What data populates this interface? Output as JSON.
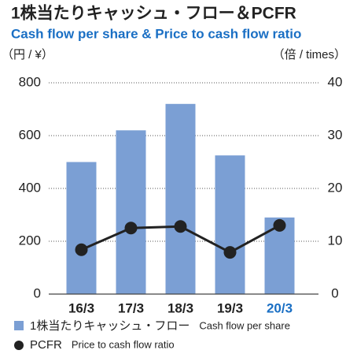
{
  "chart_data": {
    "type": "bar-line",
    "title": "1株当たりキャッシュ・フロー＆PCFR",
    "subtitle": "Cash flow per share & Price to cash flow ratio",
    "y_label": "（円 / ¥）",
    "y2_label": "（倍 / times）",
    "categories": [
      "16/3",
      "17/3",
      "18/3",
      "19/3",
      "20/3"
    ],
    "category_label_colors": [
      "#222222",
      "#222222",
      "#222222",
      "#222222",
      "#1a6fc4"
    ],
    "series": [
      {
        "name": "1株当たりキャッシュ・フロー",
        "description": "Cash flow per share",
        "type": "bar",
        "color": "#7b9fd4",
        "values": [
          500,
          620,
          720,
          525,
          290
        ]
      },
      {
        "name": "PCFR",
        "description": "Price to cash flow ratio",
        "type": "line",
        "axis": "y2",
        "color": "#222222",
        "values": [
          8.4,
          12.5,
          12.8,
          7.9,
          13.0
        ]
      }
    ],
    "ylim": [
      0,
      800
    ],
    "yticks": [
      0,
      200,
      400,
      600,
      800
    ],
    "y2lim": [
      0,
      40
    ],
    "y2ticks": [
      0,
      10,
      20,
      30,
      40
    ],
    "grid": true
  }
}
